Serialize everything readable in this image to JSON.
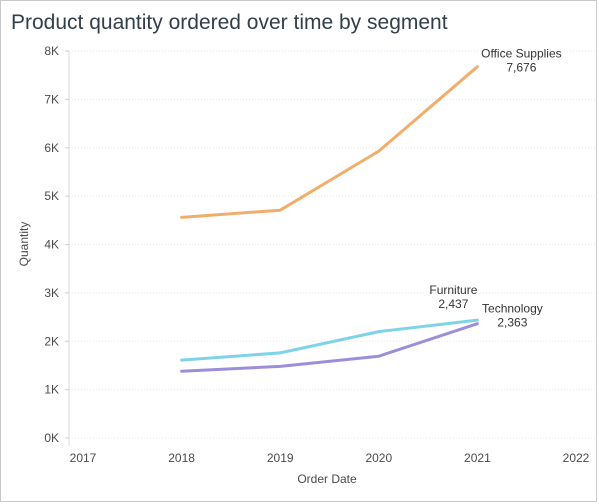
{
  "chart_data": {
    "type": "line",
    "title": "Product quantity ordered over time by segment",
    "xlabel": "Order Date",
    "ylabel": "Quantity",
    "x_ticks": [
      2017,
      2018,
      2019,
      2020,
      2021,
      2022
    ],
    "y_ticks": [
      "0K",
      "1K",
      "2K",
      "3K",
      "4K",
      "5K",
      "6K",
      "7K",
      "8K"
    ],
    "xlim": [
      2017,
      2022
    ],
    "ylim": [
      0,
      8000
    ],
    "grid": "horizontal",
    "x": [
      2018,
      2019,
      2020,
      2021
    ],
    "series": [
      {
        "name": "Office Supplies",
        "values": [
          4560,
          4710,
          5930,
          7676
        ],
        "end_label": "7,676",
        "color": "#f1ae6b"
      },
      {
        "name": "Furniture",
        "values": [
          1610,
          1760,
          2200,
          2437
        ],
        "end_label": "2,437",
        "color": "#7fd3e8"
      },
      {
        "name": "Technology",
        "values": [
          1380,
          1480,
          1690,
          2363
        ],
        "end_label": "2,363",
        "color": "#9d8ed9"
      }
    ]
  }
}
